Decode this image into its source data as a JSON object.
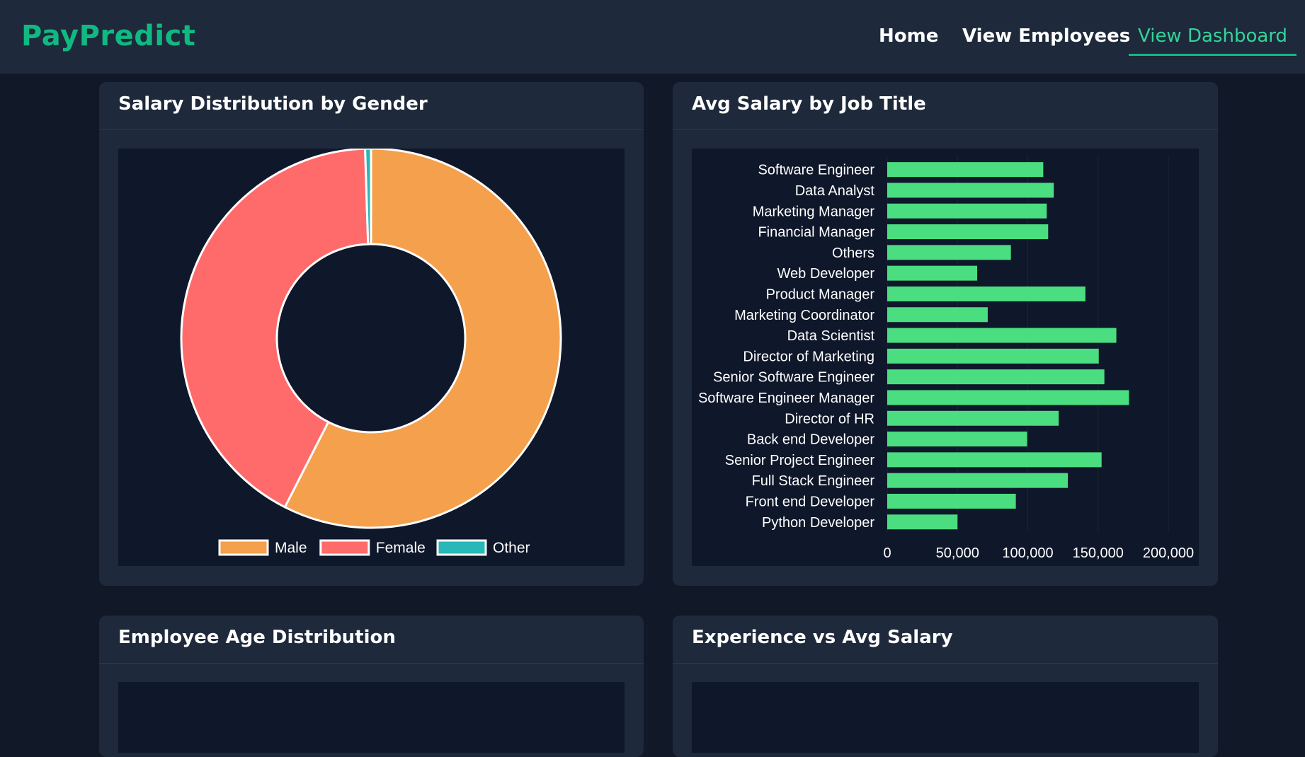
{
  "brand": {
    "name": "PayPredict"
  },
  "nav": {
    "home": "Home",
    "employees": "View Employees",
    "dashboard": "View Dashboard"
  },
  "colors": {
    "accent": "#10b981",
    "navbar_bg": "#1e293b",
    "page_bg": "#111827",
    "chart_bg": "#0f172a",
    "bar": "#4ade80"
  },
  "cards": {
    "gender": {
      "title": "Salary Distribution by Gender"
    },
    "job": {
      "title": "Avg Salary by Job Title"
    },
    "age": {
      "title": "Employee Age Distribution"
    },
    "experience": {
      "title": "Experience vs Avg Salary"
    }
  },
  "chart_data": [
    {
      "type": "pie",
      "title": "Salary Distribution by Gender",
      "donut": true,
      "categories": [
        "Male",
        "Female",
        "Other"
      ],
      "values": [
        57.5,
        42.0,
        0.5
      ],
      "colors": [
        "#f4a04c",
        "#ff6b6b",
        "#2ab7b7"
      ],
      "legend": "bottom"
    },
    {
      "type": "bar",
      "orientation": "horizontal",
      "title": "Avg Salary by Job Title",
      "categories": [
        "Software Engineer",
        "Data Analyst",
        "Marketing Manager",
        "Financial Manager",
        "Others",
        "Web Developer",
        "Product Manager",
        "Marketing Coordinator",
        "Data Scientist",
        "Director of Marketing",
        "Senior Software Engineer",
        "Software Engineer Manager",
        "Director of HR",
        "Back end Developer",
        "Senior Project Engineer",
        "Full Stack Engineer",
        "Front end Developer",
        "Python Developer"
      ],
      "values": [
        111000,
        118500,
        113500,
        114500,
        88000,
        64000,
        141000,
        71500,
        163000,
        150500,
        154500,
        172000,
        122000,
        99500,
        152500,
        128500,
        91500,
        50000
      ],
      "xlim": [
        0,
        200000
      ],
      "xticks": [
        "0",
        "50,000",
        "100,000",
        "150,000",
        "200,000"
      ],
      "color": "#4ade80"
    }
  ]
}
